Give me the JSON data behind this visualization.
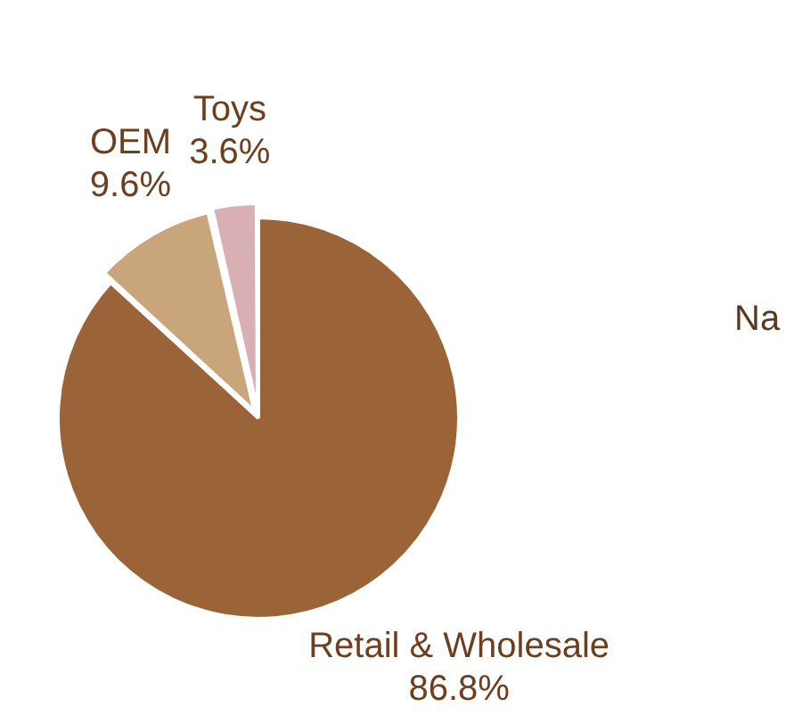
{
  "chart_data": {
    "type": "pie",
    "categories": [
      "Retail & Wholesale",
      "OEM",
      "Toys"
    ],
    "values": [
      86.8,
      9.6,
      3.6
    ],
    "colors": [
      "#9a6438",
      "#c9a57c",
      "#d8b0b4"
    ],
    "value_labels": [
      "86.8%",
      "9.6%",
      "3.6%"
    ],
    "annotations": [
      "Na"
    ]
  }
}
